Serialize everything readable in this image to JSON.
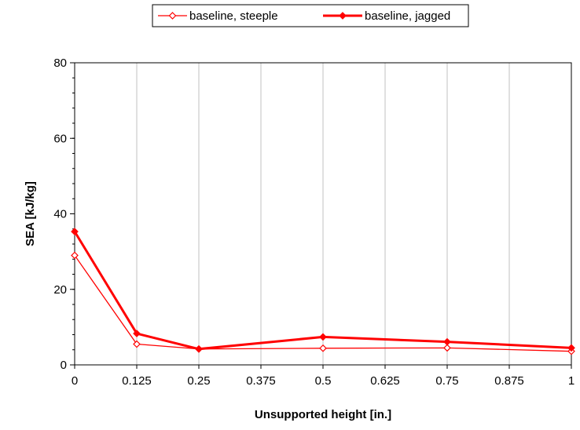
{
  "chart_data": {
    "type": "line",
    "title": "",
    "xlabel": "Unsupported height [in.]",
    "ylabel": "SEA [kJ/kg]",
    "xlim": [
      0,
      1
    ],
    "ylim": [
      0,
      80
    ],
    "x_ticks": [
      0,
      0.125,
      0.25,
      0.375,
      0.5,
      0.625,
      0.75,
      0.875,
      1
    ],
    "x_tick_labels": [
      "0",
      "0.125",
      "0.25",
      "0.375",
      "0.5",
      "0.625",
      "0.75",
      "0.875",
      "1"
    ],
    "y_ticks": [
      0,
      20,
      40,
      60,
      80
    ],
    "y_tick_labels": [
      "0",
      "20",
      "40",
      "60",
      "80"
    ],
    "grid": true,
    "legend_position": "top",
    "series": [
      {
        "name": "baseline, steeple",
        "color": "#ff0000",
        "marker": "open-diamond",
        "x": [
          0,
          0.125,
          0.25,
          0.5,
          0.75,
          1
        ],
        "values": [
          29,
          5.5,
          4.2,
          4.4,
          4.5,
          3.6
        ]
      },
      {
        "name": "baseline, jagged",
        "color": "#ff0000",
        "marker": "filled-diamond",
        "x": [
          0,
          0.125,
          0.25,
          0.5,
          0.75,
          1
        ],
        "values": [
          35.3,
          8.3,
          4.2,
          7.4,
          6.1,
          4.5
        ]
      }
    ]
  }
}
